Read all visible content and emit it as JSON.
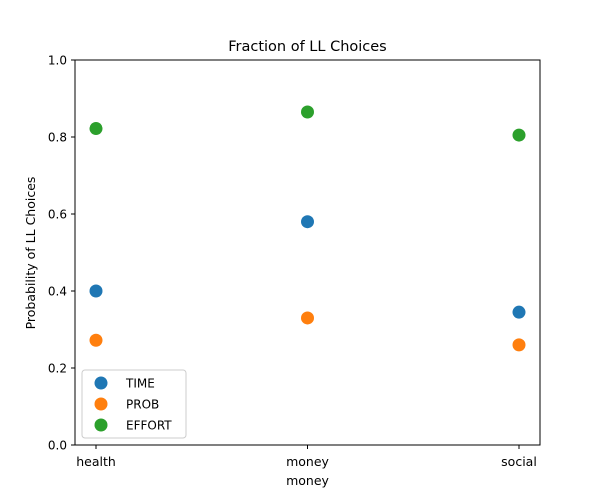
{
  "chart_data": {
    "type": "scatter",
    "title": "Fraction of LL Choices",
    "xlabel": "money",
    "ylabel": "Probability of LL Choices",
    "categories": [
      "health",
      "money",
      "social"
    ],
    "ylim": [
      0.0,
      1.0
    ],
    "yticks": [
      0.0,
      0.2,
      0.4,
      0.6,
      0.8,
      1.0
    ],
    "ytick_labels": [
      "0.0",
      "0.2",
      "0.4",
      "0.6",
      "0.8",
      "1.0"
    ],
    "grid": false,
    "legend_position": "lower-left",
    "series": [
      {
        "name": "TIME",
        "color": "#1f77b4",
        "values": [
          0.4,
          0.58,
          0.345
        ]
      },
      {
        "name": "PROB",
        "color": "#ff7f0e",
        "values": [
          0.272,
          0.33,
          0.26
        ]
      },
      {
        "name": "EFFORT",
        "color": "#2ca02c",
        "values": [
          0.822,
          0.865,
          0.805
        ]
      }
    ]
  }
}
